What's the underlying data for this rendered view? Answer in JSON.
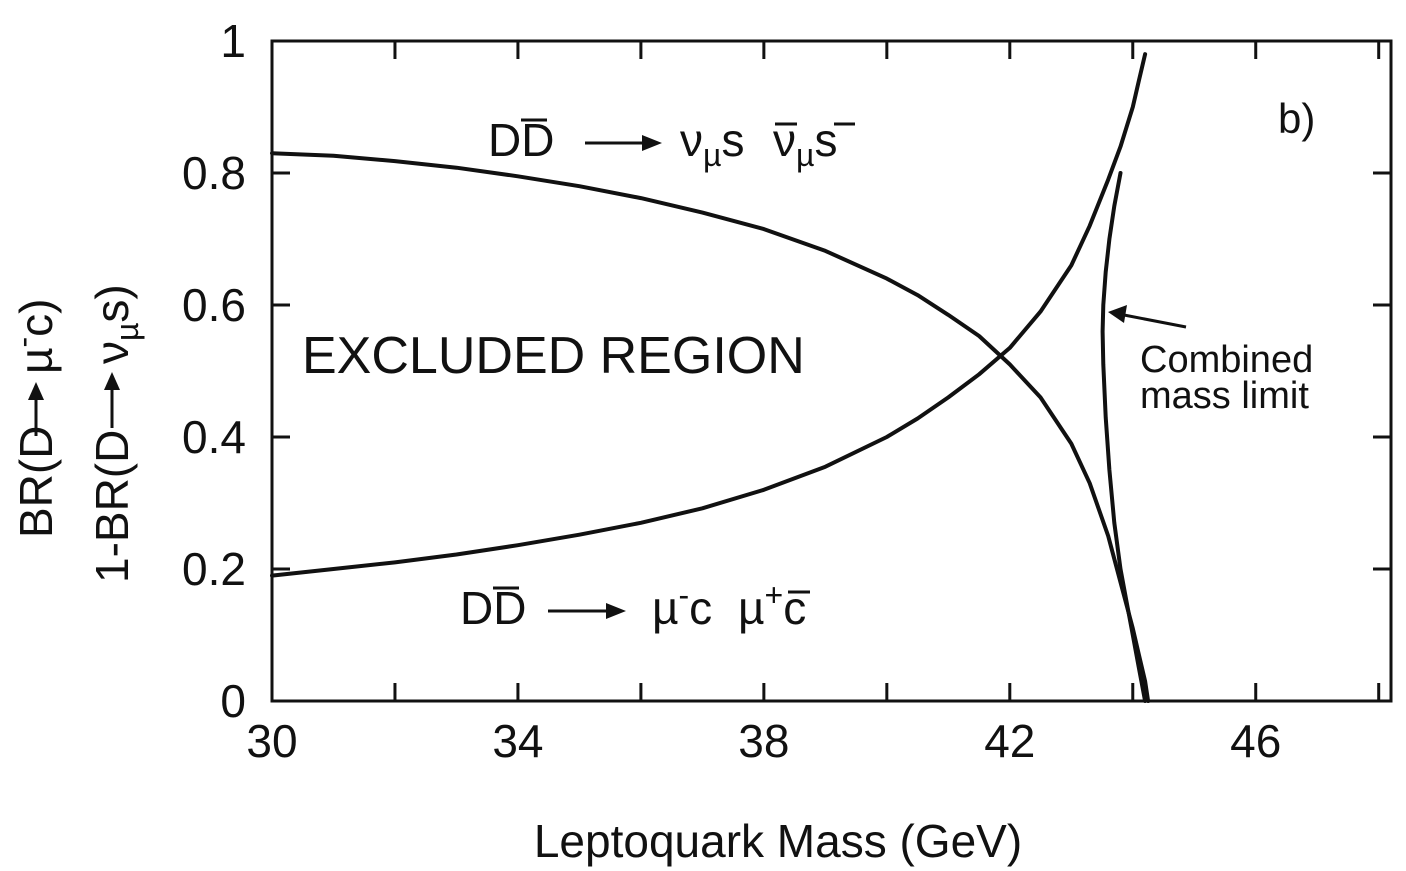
{
  "chart_data": {
    "type": "line",
    "panel_label": "b)",
    "xlabel": "Leptoquark Mass  (GeV)",
    "ylabel": {
      "outer": {
        "pre": "BR(D",
        "mid": "µ",
        "sup": "-",
        "post": "c)"
      },
      "inner": {
        "pre": "1-BR(D",
        "mid": "ν",
        "sub": "µ",
        "post": "s)"
      }
    },
    "xlim": [
      30,
      48.2
    ],
    "ylim": [
      0,
      1
    ],
    "xticks": [
      30,
      34,
      38,
      42,
      46
    ],
    "xtick_labels": [
      "30",
      "34",
      "38",
      "42",
      "46"
    ],
    "yticks": [
      0,
      0.2,
      0.4,
      0.6,
      0.8,
      1
    ],
    "ytick_labels": [
      "0",
      "0.2",
      "0.4",
      "0.6",
      "0.8",
      "1"
    ],
    "grid": false,
    "series": [
      {
        "x": [
          30,
          31,
          32,
          33,
          34,
          35,
          36,
          37,
          38,
          39,
          40,
          40.5,
          41,
          41.5,
          42,
          42.5,
          43,
          43.3,
          43.6,
          43.8,
          44,
          44.1,
          44.2,
          44.25
        ],
        "y": [
          0.83,
          0.826,
          0.818,
          0.808,
          0.795,
          0.78,
          0.762,
          0.74,
          0.715,
          0.682,
          0.64,
          0.615,
          0.585,
          0.553,
          0.51,
          0.46,
          0.39,
          0.33,
          0.25,
          0.18,
          0.11,
          0.07,
          0.03,
          0
        ]
      },
      {
        "x": [
          30,
          31,
          32,
          33,
          34,
          35,
          36,
          37,
          38,
          39,
          40,
          40.5,
          41,
          41.5,
          42,
          42.5,
          43,
          43.3,
          43.6,
          43.8,
          44,
          44.1,
          44.2
        ],
        "y": [
          0.19,
          0.2,
          0.21,
          0.222,
          0.236,
          0.252,
          0.27,
          0.292,
          0.32,
          0.355,
          0.4,
          0.428,
          0.46,
          0.495,
          0.535,
          0.59,
          0.66,
          0.72,
          0.79,
          0.84,
          0.9,
          0.94,
          0.98
        ]
      },
      {
        "x": [
          44.2,
          44.1,
          44.0,
          43.9,
          43.8,
          43.7,
          43.62,
          43.56,
          43.52,
          43.51,
          43.52,
          43.56,
          43.62,
          43.7,
          43.8
        ],
        "y": [
          0,
          0.05,
          0.1,
          0.15,
          0.2,
          0.27,
          0.35,
          0.43,
          0.51,
          0.56,
          0.6,
          0.65,
          0.7,
          0.75,
          0.8
        ]
      }
    ],
    "annotations": {
      "region": "EXCLUDED  REGION",
      "upper_channel": {
        "pre": "D",
        "pre_bar": "D",
        "nu1": "ν",
        "sub1": "µ",
        "s1": "s",
        "nu2": "ν",
        "sub2": "µ",
        "s2": "s"
      },
      "lower_channel": {
        "pre": "D",
        "pre_bar": "D",
        "mu1": "µ",
        "sup1": "-",
        "c1": "c",
        "mu2": "µ",
        "sup2": "+",
        "c2": "c"
      },
      "combined_line1": "Combined",
      "combined_line2": "mass limit"
    },
    "colors": {
      "line": "#111111",
      "background": "#ffffff"
    }
  }
}
